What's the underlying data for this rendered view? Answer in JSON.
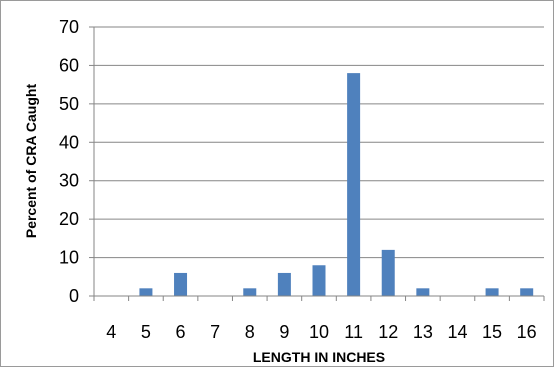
{
  "chart_data": {
    "type": "bar",
    "title": "",
    "xlabel": "LENGTH IN INCHES",
    "ylabel": "Percent of CRA Caught",
    "categories": [
      "4",
      "5",
      "6",
      "7",
      "8",
      "9",
      "10",
      "11",
      "12",
      "13",
      "14",
      "15",
      "16"
    ],
    "values": [
      0,
      2,
      6,
      0,
      2,
      6,
      8,
      58,
      12,
      2,
      0,
      2,
      2
    ],
    "ylim": [
      0,
      70
    ],
    "yticks": [
      "0",
      "10",
      "20",
      "30",
      "40",
      "50",
      "60",
      "70"
    ],
    "grid": true,
    "legend": "none",
    "bar_color": "#4F81BD",
    "grid_color": "#868686"
  }
}
